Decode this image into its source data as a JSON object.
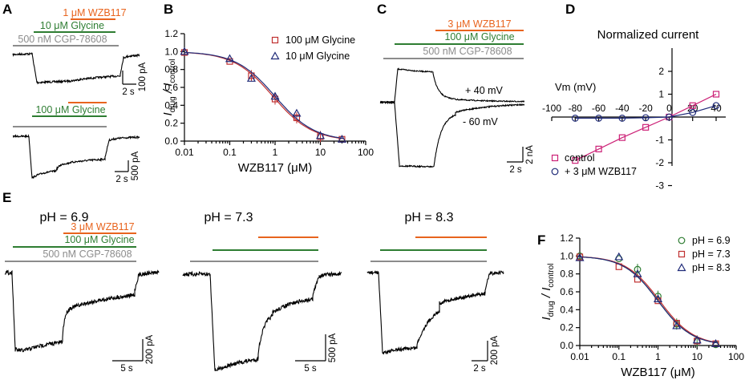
{
  "colors": {
    "wzb": "#e8641e",
    "glycine": "#2e7d32",
    "cgp": "#8c8c8c",
    "red": "#c03030",
    "blue": "#1f2a78",
    "green": "#2e7d32",
    "magenta": "#cc2277",
    "navy": "#1f2a78"
  },
  "panels": {
    "A": "A",
    "B": "B",
    "C": "C",
    "D": "D",
    "E": "E",
    "F": "F"
  },
  "panelA": {
    "top": {
      "wzb": "1 μM WZB117",
      "gly": "10 μM Glycine",
      "cgp": "500 nM CGP-78608",
      "scale_y": "100 pA",
      "scale_x": "2 s"
    },
    "bottom": {
      "gly": "100 μM Glycine",
      "scale_y": "500 pA",
      "scale_x": "2 s"
    }
  },
  "panelC": {
    "wzb": "3 μM WZB117",
    "gly": "100 μM Glycine",
    "cgp": "500 nM CGP-78608",
    "v_pos": "+ 40 mV",
    "v_neg": "- 60 mV",
    "scale_y": "2 nA",
    "scale_x": "2 s"
  },
  "panelE": {
    "ph69": "pH = 6.9",
    "ph73": "pH = 7.3",
    "ph83": "pH = 8.3",
    "wzb": "3 μM WZB117",
    "gly": "100 μM Glycine",
    "cgp": "500 nM CGP-78608",
    "scale1_y": "200 pA",
    "scale1_x": "5 s",
    "scale2_y": "500 pA",
    "scale2_x": "5 s",
    "scale3_y": "200 pA",
    "scale3_x": "2 s"
  },
  "chart_data": [
    {
      "id": "B",
      "type": "scatter",
      "xlabel": "WZB117 (μM)",
      "ylabel_main": "I",
      "ylabel_sub1": "drug",
      "ylabel_sep": " / I",
      "ylabel_sub2": "control",
      "xscale": "log",
      "xlim": [
        0.01,
        100
      ],
      "ylim": [
        0,
        1.2
      ],
      "xticks": [
        "0.01",
        "0.1",
        "1",
        "10",
        "100"
      ],
      "yticks": [
        "0.0",
        "0.2",
        "0.4",
        "0.6",
        "0.8",
        "1.0",
        "1.2"
      ],
      "x": [
        0.01,
        0.1,
        0.3,
        1,
        3,
        10,
        30
      ],
      "series": [
        {
          "name": "100 μM Glycine",
          "marker": "square",
          "color": "#c03030",
          "values": [
            0.99,
            0.89,
            0.73,
            0.47,
            0.26,
            0.05,
            0.02
          ],
          "ic50": 0.9
        },
        {
          "name": "10 μM Glycine",
          "marker": "triangle",
          "color": "#1f2a78",
          "values": [
            1.0,
            0.92,
            0.7,
            0.5,
            0.31,
            0.06,
            0.02
          ],
          "ic50": 1.0
        }
      ]
    },
    {
      "id": "D",
      "type": "line",
      "title": "Normalized current",
      "xlabel": "Vm (mV)",
      "xlim": [
        -100,
        40
      ],
      "ylim": [
        -3,
        2
      ],
      "xticks": [
        "-100",
        "-80",
        "-60",
        "-40",
        "-20",
        "0",
        "20",
        "40"
      ],
      "yticks": [
        "-3",
        "-2",
        "-1",
        "0",
        "1",
        "2"
      ],
      "x": [
        -80,
        -60,
        -40,
        -20,
        0,
        20,
        40
      ],
      "series": [
        {
          "name": "control",
          "marker": "square",
          "color": "#cc2277",
          "values": [
            -1.9,
            -1.4,
            -0.9,
            -0.45,
            0.0,
            0.5,
            1.0
          ]
        },
        {
          "name": "+ 3 μM WZB117",
          "marker": "circle",
          "color": "#1f2a78",
          "values": [
            -0.05,
            -0.05,
            -0.05,
            -0.03,
            0.0,
            0.2,
            0.5
          ]
        }
      ]
    },
    {
      "id": "F",
      "type": "scatter",
      "xlabel": "WZB117 (μM)",
      "ylabel_main": "I",
      "ylabel_sub1": "drug",
      "ylabel_sep": " / I",
      "ylabel_sub2": "control",
      "xscale": "log",
      "xlim": [
        0.01,
        100
      ],
      "ylim": [
        0,
        1.2
      ],
      "xticks": [
        "0.01",
        "0.1",
        "1",
        "10",
        "100"
      ],
      "yticks": [
        "0.0",
        "0.2",
        "0.4",
        "0.6",
        "0.8",
        "1.0",
        "1.2"
      ],
      "x": [
        0.01,
        0.1,
        0.3,
        1,
        3,
        10,
        30
      ],
      "series": [
        {
          "name": "pH = 6.9",
          "marker": "circle",
          "color": "#2e7d32",
          "values": [
            1.0,
            0.97,
            0.85,
            0.55,
            0.24,
            0.05,
            0.01
          ],
          "ic50": 1.0
        },
        {
          "name": "pH = 7.3",
          "marker": "square",
          "color": "#c03030",
          "values": [
            0.99,
            0.88,
            0.74,
            0.5,
            0.25,
            0.05,
            0.02
          ],
          "ic50": 1.1
        },
        {
          "name": "pH = 8.3",
          "marker": "triangle",
          "color": "#1f2a78",
          "values": [
            0.98,
            0.99,
            0.8,
            0.52,
            0.22,
            0.06,
            0.02
          ],
          "ic50": 1.0
        }
      ]
    }
  ]
}
